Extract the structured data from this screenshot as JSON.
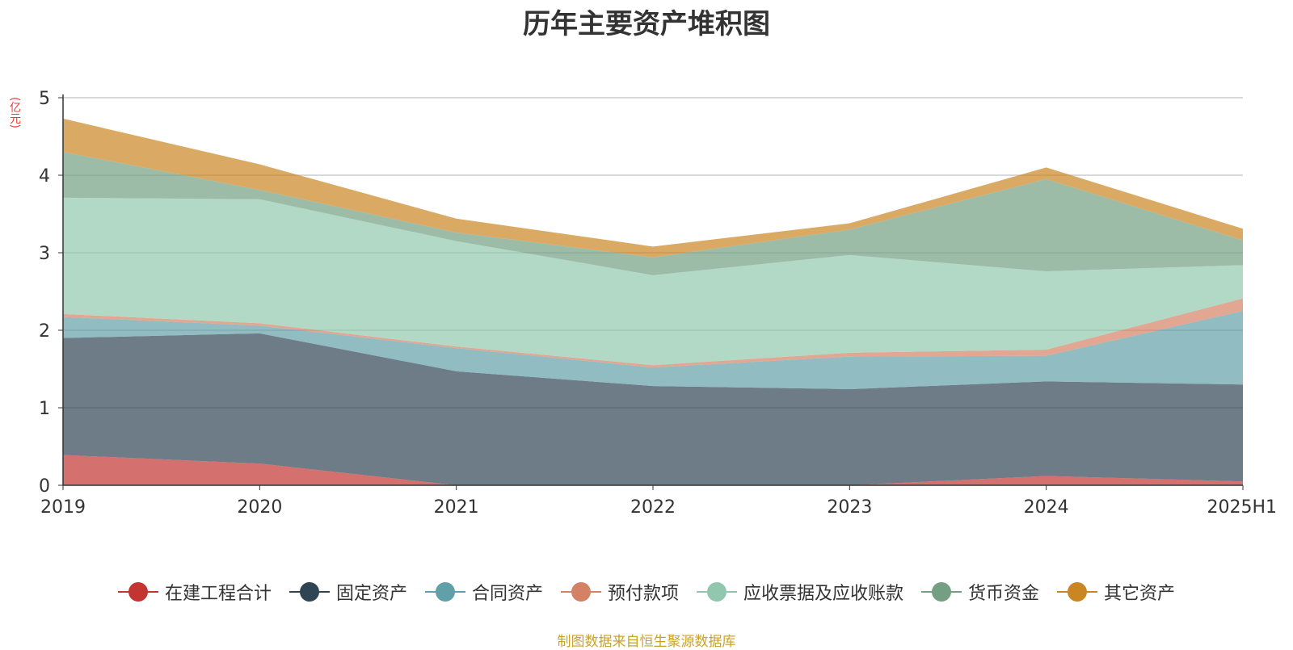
{
  "chart_data": {
    "type": "area",
    "stacked": true,
    "title": "历年主要资产堆积图",
    "unit": "(亿元)",
    "categories": [
      "2019",
      "2020",
      "2021",
      "2022",
      "2023",
      "2024",
      "2025H1"
    ],
    "ylim": [
      0,
      5
    ],
    "yticks": [
      "0",
      "1",
      "2",
      "3",
      "4",
      "5"
    ],
    "grid": true,
    "legend_position": "bottom",
    "series": [
      {
        "name": "在建工程合计",
        "color": "#c23531",
        "values": [
          0.39,
          0.28,
          0.0,
          0.0,
          0.0,
          0.12,
          0.05
        ]
      },
      {
        "name": "固定资产",
        "color": "#2f4554",
        "values": [
          1.51,
          1.68,
          1.47,
          1.28,
          1.24,
          1.22,
          1.25
        ]
      },
      {
        "name": "合同资产",
        "color": "#61a0a8",
        "values": [
          0.27,
          0.1,
          0.3,
          0.24,
          0.42,
          0.33,
          0.95
        ]
      },
      {
        "name": "预付款项",
        "color": "#d48265",
        "values": [
          0.04,
          0.03,
          0.02,
          0.03,
          0.05,
          0.08,
          0.16
        ]
      },
      {
        "name": "应收票据及应收账款",
        "color": "#91c7ae",
        "values": [
          1.5,
          1.6,
          1.36,
          1.16,
          1.26,
          1.01,
          0.43
        ]
      },
      {
        "name": "货币资金",
        "color": "#749f83",
        "values": [
          0.59,
          0.12,
          0.11,
          0.23,
          0.33,
          1.19,
          0.32
        ]
      },
      {
        "name": "其它资产",
        "color": "#ca8622",
        "values": [
          0.43,
          0.33,
          0.18,
          0.14,
          0.08,
          0.15,
          0.15
        ]
      }
    ]
  },
  "source_note": "制图数据来自恒生聚源数据库"
}
